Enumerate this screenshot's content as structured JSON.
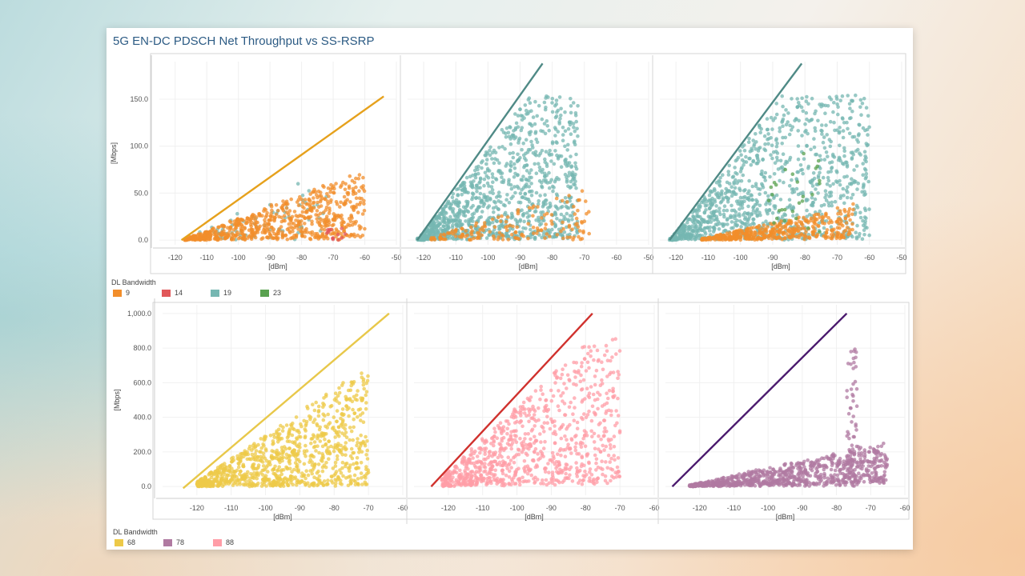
{
  "title": "5G EN-DC PDSCH Net Throughput vs SS-RSRP",
  "legend_top": {
    "title": "DL Bandwidth",
    "items": [
      {
        "label": "9",
        "color": "#f28e2b"
      },
      {
        "label": "14",
        "color": "#e15759"
      },
      {
        "label": "19",
        "color": "#76b7b2"
      },
      {
        "label": "23",
        "color": "#59a14f"
      }
    ]
  },
  "legend_bottom": {
    "title": "DL Bandwidth",
    "items": [
      {
        "label": "68",
        "color": "#edc948"
      },
      {
        "label": "78",
        "color": "#b07aa1"
      },
      {
        "label": "88",
        "color": "#ff9da7"
      }
    ]
  },
  "chart_data": [
    {
      "type": "scatter",
      "ylabel": "[Mbps]",
      "xlabel": "[dBm]",
      "xlim": [
        -125,
        -50
      ],
      "ylim": [
        -5,
        190
      ],
      "yticks": [
        0,
        50,
        100,
        150
      ],
      "xticks": [
        -120,
        -110,
        -100,
        -90,
        -80,
        -70,
        -60,
        -50
      ],
      "ytick_labels": [
        "0.0",
        "50.0",
        "100.0",
        "150.0"
      ],
      "trendline": {
        "color": "#e6a11c",
        "x": [
          -118,
          -54
        ],
        "y": [
          0,
          153
        ]
      },
      "series": [
        {
          "name": "19",
          "color": "#76b7b2",
          "count": 70,
          "x_range": [
            -116,
            -72
          ],
          "slope": 1.7,
          "base": -118,
          "spread": 0.95
        },
        {
          "name": "9",
          "color": "#f28e2b",
          "count": 700,
          "x_range": [
            -117,
            -60
          ],
          "slope": 1.45,
          "base": -118,
          "spread": 0.85
        },
        {
          "name": "14",
          "color": "#e15759",
          "count": 14,
          "x_range": [
            -72,
            -66
          ],
          "slope": 0.3,
          "base": -110,
          "spread": 1.0
        }
      ]
    },
    {
      "type": "scatter",
      "ylabel": "",
      "xlabel": "[dBm]",
      "xlim": [
        -125,
        -50
      ],
      "ylim": [
        -5,
        190
      ],
      "yticks": [
        0,
        50,
        100,
        150
      ],
      "xticks": [
        -120,
        -110,
        -100,
        -90,
        -80,
        -70,
        -60,
        -50
      ],
      "trendline": {
        "color": "#4f8a86",
        "x": [
          -122,
          -83
        ],
        "y": [
          0,
          188
        ]
      },
      "series": [
        {
          "name": "19",
          "color": "#76b7b2",
          "count": 1100,
          "x_range": [
            -122,
            -72
          ],
          "slope": 4.6,
          "base": -122,
          "spread": 0.95,
          "cap": 160
        },
        {
          "name": "9",
          "color": "#f28e2b",
          "count": 160,
          "x_range": [
            -118,
            -68
          ],
          "slope": 1.2,
          "base": -120,
          "spread": 0.9
        }
      ]
    },
    {
      "type": "scatter",
      "ylabel": "",
      "xlabel": "[dBm]",
      "xlim": [
        -125,
        -50
      ],
      "ylim": [
        -5,
        190
      ],
      "yticks": [
        0,
        50,
        100,
        150
      ],
      "xticks": [
        -120,
        -110,
        -100,
        -90,
        -80,
        -70,
        -60,
        -50
      ],
      "trendline": {
        "color": "#4f8a86",
        "x": [
          -122,
          -81
        ],
        "y": [
          0,
          188
        ]
      },
      "series": [
        {
          "name": "19",
          "color": "#76b7b2",
          "count": 1100,
          "x_range": [
            -122,
            -60
          ],
          "slope": 4.6,
          "base": -122,
          "spread": 0.95,
          "cap": 160
        },
        {
          "name": "9",
          "color": "#f28e2b",
          "count": 450,
          "x_range": [
            -112,
            -65
          ],
          "slope": 0.9,
          "base": -114,
          "spread": 0.8
        },
        {
          "name": "23",
          "color": "#59a14f",
          "count": 28,
          "x_range": [
            -92,
            -75
          ],
          "slope": 4.6,
          "base": -120,
          "spread": 0.25
        }
      ]
    },
    {
      "type": "scatter",
      "ylabel": "[Mbps]",
      "xlabel": "[dBm]",
      "xlim": [
        -130,
        -60
      ],
      "ylim": [
        -50,
        1050
      ],
      "yticks": [
        0,
        200,
        400,
        600,
        800,
        1000
      ],
      "xticks": [
        -120,
        -110,
        -100,
        -90,
        -80,
        -70,
        -60
      ],
      "ytick_labels": [
        "0.0",
        "200.0",
        "400.0",
        "600.0",
        "800.0",
        "1,000.0"
      ],
      "trendline": {
        "color": "#e8c84a",
        "x": [
          -124,
          -64
        ],
        "y": [
          -10,
          1000
        ]
      },
      "series": [
        {
          "name": "68",
          "color": "#edc948",
          "count": 950,
          "x_range": [
            -120,
            -70
          ],
          "slope": 14,
          "base": -122,
          "spread": 0.95,
          "cap": 720
        }
      ]
    },
    {
      "type": "scatter",
      "ylabel": "",
      "xlabel": "[dBm]",
      "xlim": [
        -130,
        -60
      ],
      "ylim": [
        -50,
        1050
      ],
      "yticks": [
        0,
        200,
        400,
        600,
        800,
        1000
      ],
      "xticks": [
        -120,
        -110,
        -100,
        -90,
        -80,
        -70,
        -60
      ],
      "trendline": {
        "color": "#d0312d",
        "x": [
          -125,
          -78
        ],
        "y": [
          0,
          1000
        ]
      },
      "series": [
        {
          "name": "88",
          "color": "#ff9da7",
          "count": 900,
          "x_range": [
            -122,
            -70
          ],
          "slope": 20,
          "base": -125,
          "spread": 0.9,
          "cap": 900
        }
      ]
    },
    {
      "type": "scatter",
      "ylabel": "",
      "xlabel": "[dBm]",
      "xlim": [
        -130,
        -60
      ],
      "ylim": [
        -50,
        1050
      ],
      "yticks": [
        0,
        200,
        400,
        600,
        800,
        1000
      ],
      "xticks": [
        -120,
        -110,
        -100,
        -90,
        -80,
        -70,
        -60
      ],
      "trendline": {
        "color": "#4b1a6e",
        "x": [
          -128,
          -77
        ],
        "y": [
          0,
          1000
        ]
      },
      "series": [
        {
          "name": "78",
          "color": "#b07aa1",
          "count": 850,
          "x_range": [
            -123,
            -65
          ],
          "slope": 5,
          "base": -125,
          "spread": 0.8,
          "cap": 420
        },
        {
          "name": "78",
          "color": "#b07aa1",
          "count": 60,
          "x_range": [
            -77,
            -74
          ],
          "slope": 30,
          "base": -105,
          "spread": 0.9,
          "cap": 950
        }
      ]
    }
  ]
}
